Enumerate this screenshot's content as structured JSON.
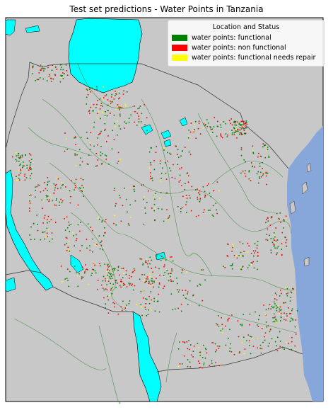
{
  "title": "Test set predictions - Water Points in Tanzania",
  "legend": {
    "title": "Location and Status",
    "items": [
      {
        "label": "water points: functional",
        "color": "#008000"
      },
      {
        "label": "water points: non functional",
        "color": "#ff0000"
      },
      {
        "label": "water points: functional needs repair",
        "color": "#ffff00"
      }
    ]
  },
  "colors": {
    "land": "#c8c8c8",
    "ocean": "#87a6d9",
    "lakes": "#00ffff",
    "rivers": "#3a8a3a",
    "border": "#333333"
  }
}
